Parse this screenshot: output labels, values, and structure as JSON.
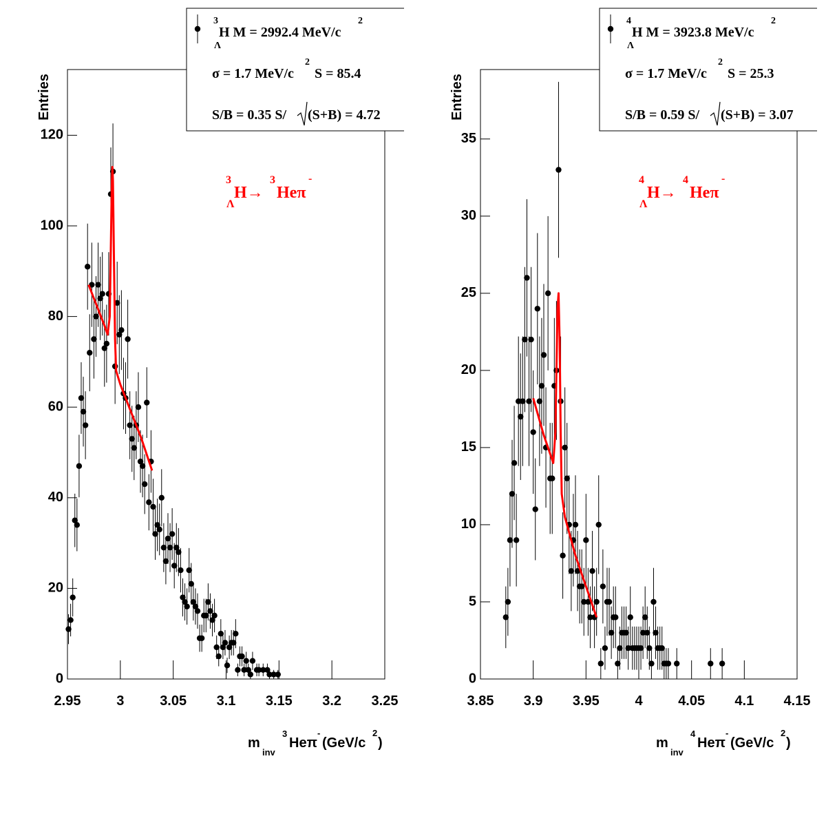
{
  "chart_data": [
    {
      "type": "scatter",
      "ylabel": "Entries",
      "xlabel": {
        "symbol": "m",
        "subscript": "inv",
        "mass_number": "3",
        "text": "Heπ",
        "charge": "-",
        "unit": "(GeV/c",
        "unit_sup": "2",
        "close": ")"
      },
      "legend": {
        "mass_number": "3",
        "subscript": "Λ",
        "mass": "H M = 2992.4 MeV/c",
        "mass_sup": "2",
        "width": "σ = 1.7 MeV/c",
        "width_sup": "2",
        "signal": "S = 85.4",
        "ratio": "S/B = 0.35  S/",
        "significance": "(S+B) = 4.72"
      },
      "annotation": {
        "mass_number": "3",
        "subscript": "Λ",
        "parent": "H→ ",
        "daughter_mass_number": "3",
        "daughter": "Heπ",
        "charge": "-"
      },
      "xlim": [
        2.95,
        3.25
      ],
      "xticks": [
        2.95,
        3,
        3.05,
        3.1,
        3.15,
        3.2,
        3.25
      ],
      "ylim": [
        0,
        134.5
      ],
      "yticks": [
        0,
        20,
        40,
        60,
        80,
        100,
        120
      ],
      "x": [
        2.951,
        2.953,
        2.955,
        2.957,
        2.959,
        2.961,
        2.963,
        2.965,
        2.967,
        2.969,
        2.971,
        2.973,
        2.975,
        2.977,
        2.979,
        2.981,
        2.983,
        2.985,
        2.987,
        2.989,
        2.991,
        2.993,
        2.995,
        2.997,
        2.999,
        3.001,
        3.003,
        3.005,
        3.007,
        3.009,
        3.011,
        3.013,
        3.015,
        3.017,
        3.019,
        3.021,
        3.023,
        3.025,
        3.027,
        3.029,
        3.031,
        3.033,
        3.035,
        3.037,
        3.039,
        3.041,
        3.043,
        3.045,
        3.047,
        3.049,
        3.051,
        3.053,
        3.055,
        3.057,
        3.059,
        3.061,
        3.063,
        3.065,
        3.067,
        3.069,
        3.071,
        3.073,
        3.075,
        3.077,
        3.079,
        3.081,
        3.083,
        3.085,
        3.087,
        3.089,
        3.091,
        3.093,
        3.095,
        3.097,
        3.099,
        3.101,
        3.103,
        3.105,
        3.107,
        3.109,
        3.111,
        3.113,
        3.115,
        3.117,
        3.119,
        3.121,
        3.123,
        3.125,
        3.129,
        3.131,
        3.135,
        3.139,
        3.141,
        3.145,
        3.149
      ],
      "series": [
        {
          "color": "#000000",
          "values": [
            11,
            13,
            18,
            35,
            34,
            47,
            62,
            59,
            56,
            91,
            72,
            87,
            75,
            80,
            87,
            84,
            85,
            73,
            74,
            85,
            107,
            112,
            69,
            83,
            76,
            77,
            63,
            62,
            75,
            56,
            53,
            51,
            56,
            60,
            48,
            47,
            43,
            61,
            39,
            48,
            38,
            32,
            34,
            33,
            40,
            29,
            26,
            31,
            29,
            32,
            25,
            29,
            28,
            24,
            18,
            17,
            16,
            24,
            21,
            17,
            16,
            15,
            9,
            9,
            14,
            14,
            17,
            15,
            13,
            14,
            7,
            5,
            10,
            7,
            8,
            3,
            7,
            8,
            8,
            10,
            2,
            5,
            5,
            2,
            4,
            2,
            1,
            4,
            2,
            2,
            2,
            2,
            1,
            1,
            1
          ],
          "errors": [
            3.3,
            3.6,
            4.2,
            5.9,
            5.8,
            6.9,
            7.9,
            7.7,
            7.5,
            9.5,
            8.5,
            9.3,
            8.7,
            8.9,
            9.3,
            9.2,
            9.2,
            8.5,
            8.6,
            9.2,
            10.3,
            10.6,
            8.3,
            9.1,
            8.7,
            8.8,
            7.9,
            7.9,
            8.7,
            7.5,
            7.3,
            7.1,
            7.5,
            7.7,
            6.9,
            6.9,
            6.6,
            7.8,
            6.2,
            6.9,
            6.2,
            5.7,
            5.8,
            5.7,
            6.3,
            5.4,
            5.1,
            5.6,
            5.4,
            5.7,
            5,
            5.4,
            5.3,
            4.9,
            4.2,
            4.1,
            4,
            4.9,
            4.6,
            4.1,
            4,
            3.9,
            3,
            3,
            3.7,
            3.7,
            4.1,
            3.9,
            3.6,
            3.7,
            2.6,
            2.2,
            3.2,
            2.6,
            2.8,
            1.7,
            2.6,
            2.8,
            2.8,
            3.2,
            1.4,
            2.2,
            2.2,
            1.4,
            2,
            1.4,
            1,
            2,
            1.4,
            1.4,
            1.4,
            1.4,
            1,
            1,
            1
          ]
        }
      ],
      "fit": {
        "color": "#ff0000",
        "x": [
          2.97,
          2.975,
          2.98,
          2.985,
          2.988,
          2.99,
          2.991,
          2.992,
          2.9925,
          2.993,
          2.994,
          2.995,
          2.996,
          3.0,
          3.01,
          3.02,
          3.03
        ],
        "y": [
          87,
          84,
          81,
          78,
          76,
          80,
          95,
          110,
          113,
          110,
          92,
          75,
          68,
          65,
          59,
          53,
          46
        ]
      }
    },
    {
      "type": "scatter",
      "ylabel": "Entries",
      "xlabel": {
        "symbol": "m",
        "subscript": "inv",
        "mass_number": "4",
        "text": "Heπ",
        "charge": "-",
        "unit": " (GeV/c",
        "unit_sup": "2",
        "close": ")"
      },
      "legend": {
        "mass_number": "4",
        "subscript": "Λ",
        "mass": "H M = 3923.8 MeV/c",
        "mass_sup": "2",
        "width": "σ = 1.7 MeV/c",
        "width_sup": "2",
        "signal": "S = 25.3",
        "ratio": "S/B = 0.59  S/",
        "significance": "(S+B) = 3.07"
      },
      "annotation": {
        "mass_number": "4",
        "subscript": "Λ",
        "parent": "H→ ",
        "daughter_mass_number": "4",
        "daughter": "Heπ",
        "charge": "-"
      },
      "xlim": [
        3.85,
        4.15
      ],
      "xticks": [
        3.85,
        3.9,
        3.95,
        4,
        4.05,
        4.1,
        4.15
      ],
      "ylim": [
        0,
        39.5
      ],
      "yticks": [
        0,
        5,
        10,
        15,
        20,
        25,
        30,
        35
      ],
      "x": [
        3.874,
        3.876,
        3.878,
        3.88,
        3.882,
        3.884,
        3.886,
        3.888,
        3.89,
        3.892,
        3.894,
        3.896,
        3.898,
        3.9,
        3.902,
        3.904,
        3.906,
        3.908,
        3.91,
        3.912,
        3.914,
        3.916,
        3.918,
        3.92,
        3.922,
        3.924,
        3.926,
        3.928,
        3.93,
        3.932,
        3.934,
        3.936,
        3.938,
        3.94,
        3.942,
        3.944,
        3.946,
        3.948,
        3.95,
        3.952,
        3.954,
        3.956,
        3.958,
        3.96,
        3.962,
        3.964,
        3.966,
        3.968,
        3.97,
        3.972,
        3.974,
        3.976,
        3.978,
        3.98,
        3.982,
        3.984,
        3.986,
        3.988,
        3.99,
        3.992,
        3.994,
        3.996,
        3.998,
        4,
        4.002,
        4.004,
        4.006,
        4.008,
        4.01,
        4.012,
        4.014,
        4.016,
        4.018,
        4.02,
        4.022,
        4.024,
        4.026,
        4.028,
        4.036,
        4.068,
        4.079
      ],
      "series": [
        {
          "color": "#000000",
          "values": [
            4,
            5,
            9,
            12,
            14,
            9,
            18,
            17,
            18,
            22,
            26,
            18,
            22,
            16,
            11,
            24,
            18,
            19,
            21,
            15,
            25,
            13,
            13,
            19,
            20,
            33,
            18,
            8,
            15,
            13,
            10,
            7,
            9,
            10,
            7,
            6,
            6,
            5,
            9,
            5,
            4,
            7,
            4,
            5,
            10,
            1,
            6,
            2,
            5,
            5,
            3,
            4,
            4,
            1,
            2,
            3,
            3,
            3,
            2,
            4,
            2,
            2,
            2,
            2,
            2,
            3,
            4,
            3,
            2,
            1,
            5,
            3,
            2,
            2,
            2,
            1,
            1,
            1,
            1,
            1,
            1
          ],
          "errors": [
            2,
            2.2,
            3,
            3.5,
            3.7,
            3,
            4.2,
            4.1,
            4.2,
            4.7,
            5.1,
            4.2,
            4.7,
            4,
            3.3,
            4.9,
            4.2,
            4.4,
            4.6,
            3.9,
            5,
            3.6,
            3.6,
            4.4,
            4.5,
            5.7,
            4.2,
            2.8,
            3.9,
            3.6,
            3.2,
            2.6,
            3,
            3.2,
            2.6,
            2.4,
            2.4,
            2.2,
            3,
            2.2,
            2,
            2.6,
            2,
            2.2,
            3.2,
            1,
            2.4,
            1.4,
            2.2,
            2.2,
            1.7,
            2,
            2,
            1,
            1.4,
            1.7,
            1.7,
            1.7,
            1.4,
            2,
            1.4,
            1.4,
            1.4,
            1.4,
            1.4,
            1.7,
            2,
            1.7,
            1.4,
            1,
            2.2,
            1.7,
            1.4,
            1.4,
            1.4,
            1,
            1,
            1,
            1,
            1,
            1
          ]
        }
      ],
      "fit": {
        "color": "#ff0000",
        "x": [
          3.9,
          3.905,
          3.91,
          3.915,
          3.919,
          3.921,
          3.922,
          3.923,
          3.924,
          3.925,
          3.926,
          3.927,
          3.93,
          3.94,
          3.95,
          3.96
        ],
        "y": [
          18.2,
          17,
          15.8,
          14.8,
          14,
          16,
          20,
          24,
          25,
          22,
          16,
          12,
          10.5,
          8,
          6,
          4
        ]
      }
    }
  ]
}
